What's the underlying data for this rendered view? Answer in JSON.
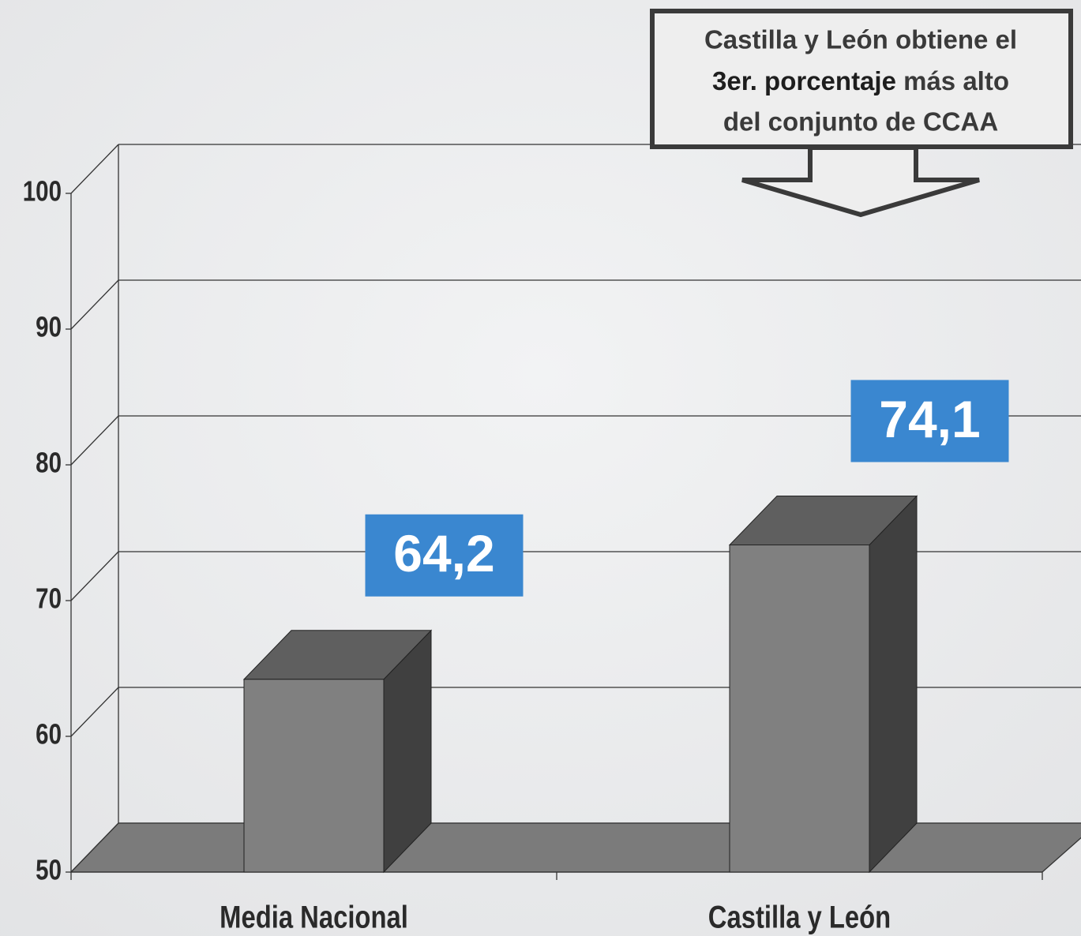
{
  "chart_data": {
    "type": "bar3d",
    "categories": [
      "Media Nacional",
      "Castilla y León"
    ],
    "values": [
      64.2,
      74.1
    ],
    "value_labels": [
      "64,2",
      "74,1"
    ],
    "color": "#808080",
    "ylim": [
      50,
      100
    ],
    "yticks": [
      50,
      60,
      70,
      80,
      90,
      100
    ],
    "grid": true,
    "annotation": [
      "Castilla y León obtiene el",
      "3er. porcentaje",
      "más alto",
      "del conjunto de CCAA"
    ]
  }
}
